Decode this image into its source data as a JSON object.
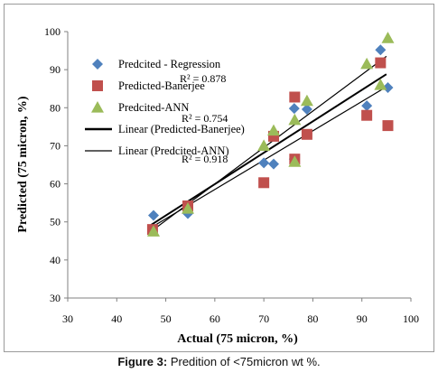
{
  "chart_data": {
    "type": "scatter",
    "xlabel": "Actual (75 micron, %)",
    "ylabel": "Predicted (75 micron, %)",
    "xlim": [
      30,
      100
    ],
    "ylim": [
      30,
      100
    ],
    "xticks": [
      30,
      40,
      50,
      60,
      70,
      80,
      90,
      100
    ],
    "yticks": [
      30,
      40,
      50,
      60,
      70,
      80,
      90,
      100
    ],
    "grid": false,
    "legend_position": "upper-left inside plot",
    "series": [
      {
        "name": "Predcited - Regression",
        "marker": "diamond",
        "color": "#4f81bd",
        "points": [
          [
            47.5,
            51.7
          ],
          [
            54.5,
            52.2
          ],
          [
            70,
            65.5
          ],
          [
            72,
            65.2
          ],
          [
            76.2,
            79.8
          ],
          [
            76.2,
            66.5
          ],
          [
            78.8,
            79.6
          ],
          [
            91,
            80.5
          ],
          [
            93.8,
            95.2
          ],
          [
            95.3,
            85.3
          ]
        ]
      },
      {
        "name": "Predicted-Banerjee",
        "marker": "square",
        "color": "#c0504d",
        "points": [
          [
            47.3,
            48
          ],
          [
            54.5,
            54.2
          ],
          [
            70,
            60.3
          ],
          [
            72,
            72.5
          ],
          [
            76.3,
            82.8
          ],
          [
            76.3,
            66.5
          ],
          [
            78.8,
            73
          ],
          [
            91,
            78
          ],
          [
            93.8,
            91.8
          ],
          [
            95.3,
            75.3
          ]
        ]
      },
      {
        "name": "Predcited-ANN",
        "marker": "triangle",
        "color": "#9bbb59",
        "points": [
          [
            47.5,
            47.5
          ],
          [
            54.5,
            53.5
          ],
          [
            70,
            70
          ],
          [
            72,
            74
          ],
          [
            76.3,
            76.8
          ],
          [
            76.3,
            65.8
          ],
          [
            78.8,
            81.8
          ],
          [
            91,
            91.5
          ],
          [
            93.8,
            86
          ],
          [
            95.3,
            98.3
          ]
        ]
      }
    ],
    "trendlines": [
      {
        "name": "Linear (Predicted-Banerjee)",
        "x": [
          47,
          95
        ],
        "y": [
          49.2,
          88.8
        ],
        "width": 2
      },
      {
        "name": "Linear (Predcited-ANN)",
        "x": [
          47,
          95
        ],
        "y": [
          47.5,
          93.5
        ],
        "width": 1.2
      },
      {
        "name": "",
        "x": [
          47,
          95
        ],
        "y": [
          48.5,
          85.5
        ],
        "width": 1.2
      }
    ],
    "annotations": [
      "R² = 0.878",
      "R² = 0.754",
      "R² = 0.918"
    ],
    "legend": [
      {
        "label": "Predcited - Regression",
        "kind": "diamond"
      },
      {
        "label": "Predicted-Banerjee",
        "kind": "square"
      },
      {
        "label": "Predcited-ANN",
        "kind": "triangle"
      },
      {
        "label": "Linear (Predicted-Banerjee)",
        "kind": "line-thick"
      },
      {
        "label": "Linear (Predcited-ANN)",
        "kind": "line-thin"
      }
    ]
  },
  "caption": {
    "bold": "Figure 3:",
    "text": " Predition of <75micron wt %."
  }
}
